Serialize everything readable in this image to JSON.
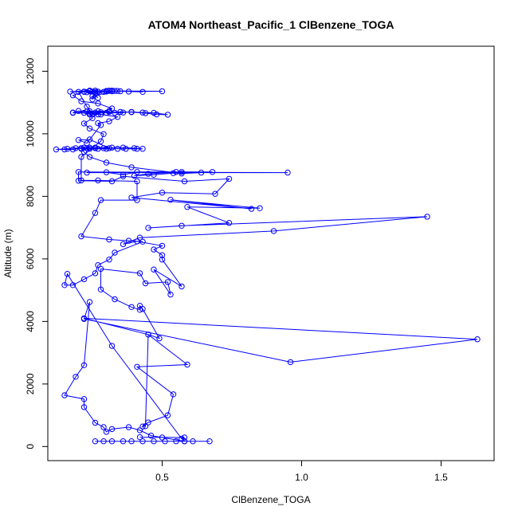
{
  "chart_data": {
    "type": "scatter",
    "title": "ATOM4 Northeast_Pacific_1 ClBenzene_TOGA",
    "xlabel": "ClBenzene_TOGA",
    "ylabel": "Altitude (m)",
    "xlim": [
      0.09,
      1.69
    ],
    "ylim": [
      -450,
      12800
    ],
    "x_ticks": [
      0.5,
      1.0,
      1.5
    ],
    "x_tick_labels": [
      "0.5",
      "1.0",
      "1.5"
    ],
    "y_ticks": [
      0,
      2000,
      4000,
      6000,
      8000,
      10000,
      12000
    ],
    "y_tick_labels": [
      "0",
      "2000",
      "4000",
      "6000",
      "8000",
      "10000",
      "12000"
    ],
    "grid": false,
    "connected": true,
    "color": "#0000ff",
    "series": [
      {
        "points": [
          [
            0.26,
            170
          ],
          [
            0.29,
            170
          ],
          [
            0.32,
            170
          ],
          [
            0.36,
            170
          ],
          [
            0.39,
            170
          ],
          [
            0.43,
            170
          ],
          [
            0.47,
            170
          ],
          [
            0.51,
            170
          ],
          [
            0.55,
            170
          ],
          [
            0.58,
            170
          ],
          [
            0.61,
            170
          ],
          [
            0.67,
            170
          ],
          [
            0.58,
            170
          ],
          [
            0.5,
            290
          ],
          [
            0.46,
            350
          ],
          [
            0.42,
            520
          ],
          [
            0.38,
            620
          ],
          [
            0.32,
            560
          ],
          [
            0.3,
            470
          ],
          [
            0.29,
            620
          ],
          [
            0.26,
            760
          ],
          [
            0.22,
            1260
          ],
          [
            0.22,
            1520
          ],
          [
            0.15,
            1640
          ],
          [
            0.19,
            2230
          ],
          [
            0.22,
            2600
          ],
          [
            0.24,
            4620
          ],
          [
            0.22,
            4080
          ],
          [
            0.96,
            2700
          ],
          [
            1.63,
            3430
          ],
          [
            0.22,
            4100
          ],
          [
            0.45,
            3580
          ],
          [
            0.59,
            2620
          ],
          [
            0.41,
            2550
          ],
          [
            0.54,
            1670
          ],
          [
            0.52,
            1000
          ],
          [
            0.45,
            770
          ],
          [
            0.43,
            640
          ],
          [
            0.44,
            650
          ],
          [
            0.45,
            3580
          ],
          [
            0.49,
            3460
          ],
          [
            0.43,
            4400
          ],
          [
            0.42,
            4500
          ],
          [
            0.42,
            4370
          ],
          [
            0.39,
            4460
          ],
          [
            0.33,
            4710
          ],
          [
            0.28,
            5020
          ],
          [
            0.28,
            5680
          ],
          [
            0.42,
            5540
          ],
          [
            0.44,
            5220
          ],
          [
            0.52,
            5260
          ],
          [
            0.53,
            4860
          ],
          [
            0.47,
            5660
          ],
          [
            0.57,
            5120
          ],
          [
            0.5,
            5980
          ],
          [
            0.5,
            6120
          ],
          [
            0.47,
            6300
          ],
          [
            0.5,
            6420
          ],
          [
            0.41,
            6560
          ],
          [
            0.36,
            6470
          ],
          [
            0.42,
            6680
          ],
          [
            0.9,
            6890
          ],
          [
            1.45,
            7350
          ],
          [
            0.57,
            7060
          ],
          [
            0.45,
            6990
          ],
          [
            0.74,
            7150
          ],
          [
            0.59,
            7660
          ],
          [
            0.85,
            7620
          ],
          [
            0.53,
            7890
          ],
          [
            0.82,
            7600
          ],
          [
            0.39,
            7960
          ],
          [
            0.5,
            8120
          ],
          [
            0.69,
            8080
          ],
          [
            0.74,
            8560
          ],
          [
            0.58,
            8480
          ],
          [
            0.36,
            8640
          ],
          [
            0.32,
            8480
          ],
          [
            0.2,
            8500
          ],
          [
            0.2,
            8780
          ],
          [
            0.95,
            8760
          ],
          [
            0.23,
            8760
          ],
          [
            0.3,
            8770
          ],
          [
            0.36,
            8690
          ],
          [
            0.41,
            8780
          ],
          [
            0.55,
            8780
          ],
          [
            0.68,
            8780
          ],
          [
            0.57,
            8780
          ],
          [
            0.45,
            8720
          ],
          [
            0.4,
            8660
          ],
          [
            0.47,
            8690
          ],
          [
            0.54,
            8740
          ],
          [
            0.64,
            8760
          ],
          [
            0.57,
            8730
          ],
          [
            0.39,
            8930
          ],
          [
            0.3,
            9080
          ],
          [
            0.24,
            9260
          ],
          [
            0.22,
            9420
          ],
          [
            0.21,
            9520
          ],
          [
            0.24,
            9520
          ],
          [
            0.27,
            9520
          ],
          [
            0.3,
            9520
          ],
          [
            0.34,
            9520
          ],
          [
            0.37,
            9520
          ],
          [
            0.41,
            9520
          ],
          [
            0.43,
            9520
          ],
          [
            0.4,
            9540
          ],
          [
            0.36,
            9560
          ],
          [
            0.32,
            9560
          ],
          [
            0.26,
            9560
          ],
          [
            0.24,
            9560
          ],
          [
            0.22,
            9560
          ],
          [
            0.19,
            9540
          ],
          [
            0.16,
            9520
          ],
          [
            0.12,
            9500
          ],
          [
            0.15,
            9500
          ],
          [
            0.18,
            9500
          ],
          [
            0.21,
            9540
          ],
          [
            0.23,
            9540
          ],
          [
            0.26,
            9540
          ],
          [
            0.29,
            9540
          ],
          [
            0.31,
            9540
          ],
          [
            0.24,
            9820
          ],
          [
            0.2,
            9800
          ],
          [
            0.23,
            9700
          ],
          [
            0.28,
            10280
          ],
          [
            0.27,
            10340
          ],
          [
            0.31,
            10400
          ],
          [
            0.34,
            10540
          ],
          [
            0.28,
            10620
          ],
          [
            0.24,
            10660
          ],
          [
            0.18,
            10670
          ],
          [
            0.22,
            10670
          ],
          [
            0.26,
            10680
          ],
          [
            0.3,
            10670
          ],
          [
            0.33,
            10670
          ],
          [
            0.36,
            10680
          ],
          [
            0.39,
            10700
          ],
          [
            0.43,
            10680
          ],
          [
            0.47,
            10670
          ],
          [
            0.52,
            10610
          ],
          [
            0.48,
            10620
          ],
          [
            0.44,
            10660
          ],
          [
            0.39,
            10690
          ],
          [
            0.35,
            10700
          ],
          [
            0.31,
            10700
          ],
          [
            0.28,
            10690
          ],
          [
            0.24,
            10720
          ],
          [
            0.2,
            10730
          ],
          [
            0.18,
            10680
          ],
          [
            0.23,
            10710
          ],
          [
            0.27,
            10720
          ],
          [
            0.31,
            10730
          ],
          [
            0.32,
            10810
          ],
          [
            0.27,
            10970
          ],
          [
            0.21,
            11040
          ],
          [
            0.18,
            11230
          ],
          [
            0.22,
            11350
          ],
          [
            0.25,
            11350
          ],
          [
            0.27,
            11350
          ],
          [
            0.3,
            11350
          ],
          [
            0.31,
            11370
          ],
          [
            0.34,
            11370
          ],
          [
            0.5,
            11360
          ],
          [
            0.38,
            11350
          ],
          [
            0.43,
            11340
          ],
          [
            0.35,
            11360
          ],
          [
            0.3,
            11370
          ],
          [
            0.26,
            11380
          ],
          [
            0.24,
            11360
          ],
          [
            0.22,
            11340
          ],
          [
            0.17,
            11350
          ],
          [
            0.24,
            11380
          ],
          [
            0.27,
            11150
          ],
          [
            0.24,
            11370
          ],
          [
            0.32,
            11360
          ],
          [
            0.23,
            11330
          ],
          [
            0.32,
            11380
          ],
          [
            0.26,
            11290
          ],
          [
            0.25,
            11100
          ],
          [
            0.25,
            11200
          ],
          [
            0.33,
            11370
          ],
          [
            0.29,
            11340
          ],
          [
            0.31,
            11380
          ],
          [
            0.26,
            11340
          ],
          [
            0.2,
            11340
          ],
          [
            0.23,
            10870
          ],
          [
            0.25,
            10620
          ],
          [
            0.27,
            10620
          ],
          [
            0.24,
            10620
          ],
          [
            0.25,
            10500
          ],
          [
            0.22,
            10330
          ],
          [
            0.24,
            10170
          ],
          [
            0.29,
            9990
          ],
          [
            0.28,
            9760
          ],
          [
            0.21,
            9260
          ],
          [
            0.21,
            8510
          ],
          [
            0.27,
            8510
          ],
          [
            0.41,
            8480
          ],
          [
            0.41,
            7880
          ],
          [
            0.28,
            7880
          ],
          [
            0.26,
            7470
          ],
          [
            0.21,
            6720
          ],
          [
            0.31,
            6620
          ],
          [
            0.38,
            6580
          ],
          [
            0.43,
            6550
          ],
          [
            0.33,
            6200
          ],
          [
            0.31,
            5980
          ],
          [
            0.27,
            5800
          ],
          [
            0.26,
            5540
          ],
          [
            0.22,
            5350
          ],
          [
            0.18,
            5160
          ],
          [
            0.15,
            5160
          ],
          [
            0.16,
            5520
          ],
          [
            0.32,
            3220
          ],
          [
            0.57,
            250
          ],
          [
            0.58,
            290
          ],
          [
            0.42,
            300
          ]
        ]
      }
    ]
  }
}
